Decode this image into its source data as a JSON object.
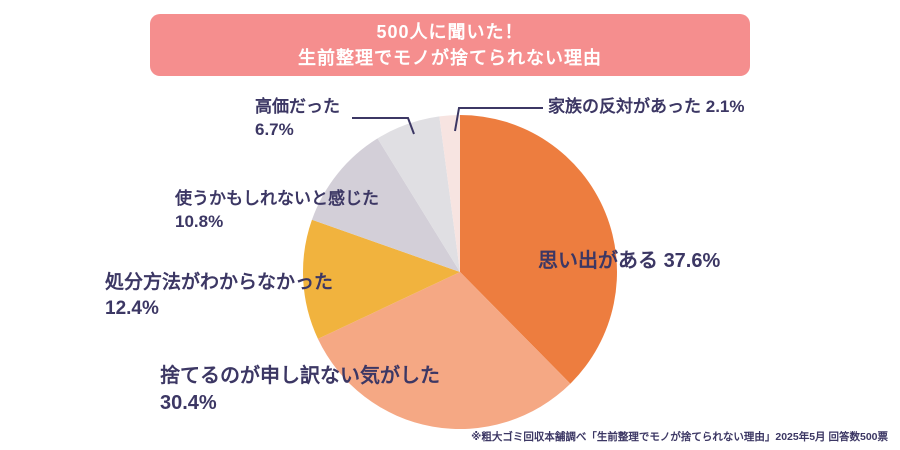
{
  "header": {
    "title_line1": "500人に聞いた！",
    "title_line2": "生前整理でモノが捨てられない理由",
    "bg_color": "#f58e8e",
    "text_color": "#ffffff"
  },
  "chart_data": {
    "type": "pie",
    "title": "500人に聞いた！ 生前整理でモノが捨てられない理由",
    "start_angle_deg": -90,
    "direction": "clockwise",
    "total": 100,
    "slices": [
      {
        "label": "思い出がある",
        "value": 37.6,
        "pct": "37.6%",
        "color": "#ed7d3f"
      },
      {
        "label": "捨てるのが申し訳ない気がした",
        "value": 30.4,
        "pct": "30.4%",
        "color": "#f5a884"
      },
      {
        "label": "処分方法がわからなかった",
        "value": 12.4,
        "pct": "12.4%",
        "color": "#f1b33e"
      },
      {
        "label": "使うかもしれないと感じた",
        "value": 10.8,
        "pct": "10.8%",
        "color": "#d3cfd8"
      },
      {
        "label": "高価だった",
        "value": 6.7,
        "pct": "6.7%",
        "color": "#e0dfe3"
      },
      {
        "label": "家族の反対があった",
        "value": 2.1,
        "pct": "2.1%",
        "color": "#f7e4e1"
      }
    ],
    "legend_position": "labels-around-pie",
    "source_note": "※粗大ゴミ回収本舗調べ「生前整理でモノが捨てられない理由」2025年5月 回答数500票"
  },
  "colors": {
    "label_text": "#3c3764",
    "background": "#ffffff",
    "leader_line": "#3c3764"
  },
  "footer": {
    "source_note": "※粗大ゴミ回収本舗調べ「生前整理でモノが捨てられない理由」2025年5月 回答数500票"
  }
}
